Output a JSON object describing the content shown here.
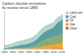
{
  "chart_data": {
    "type": "area",
    "stacked": true,
    "title": "Carbon dioxide emissions\nby source since 1880",
    "x": [
      1880,
      1890,
      1900,
      1910,
      1920,
      1930,
      1940,
      1950,
      1960,
      1970,
      1980,
      1990,
      2000,
      2010,
      2020,
      2023
    ],
    "series": [
      {
        "name": "Other",
        "color": "#d2622a",
        "values": [
          0.01,
          0.01,
          0.02,
          0.03,
          0.04,
          0.04,
          0.05,
          0.06,
          0.08,
          0.1,
          0.12,
          0.14,
          0.16,
          0.18,
          0.2,
          0.22
        ]
      },
      {
        "name": "Gas",
        "color": "#f5a623",
        "values": [
          0.0,
          0.0,
          0.0,
          0.01,
          0.02,
          0.03,
          0.06,
          0.12,
          0.25,
          0.5,
          0.75,
          0.95,
          1.15,
          1.45,
          1.75,
          1.9
        ]
      },
      {
        "name": "Oil",
        "color": "#8faa6e",
        "values": [
          0.0,
          0.0,
          0.02,
          0.06,
          0.12,
          0.2,
          0.35,
          0.6,
          1.1,
          1.8,
          2.3,
          2.5,
          2.7,
          2.9,
          3.0,
          3.2
        ]
      },
      {
        "name": "Coal",
        "color": "#5a9ea0",
        "values": [
          0.25,
          0.4,
          0.7,
          1.0,
          1.2,
          1.3,
          1.4,
          1.6,
          2.0,
          2.5,
          2.9,
          3.2,
          3.4,
          4.6,
          5.1,
          5.2
        ]
      },
      {
        "name": "Land use",
        "color": "#b8d4c8",
        "values": [
          1.0,
          1.1,
          1.2,
          1.4,
          1.5,
          1.6,
          1.7,
          1.8,
          1.9,
          2.0,
          2.0,
          1.9,
          1.8,
          1.9,
          1.8,
          1.8
        ]
      }
    ],
    "xlim": [
      1880,
      2025
    ],
    "xticks": [
      1880,
      1900,
      1920,
      1940,
      1960,
      1980,
      2000,
      2020
    ],
    "ylim": [
      0,
      13
    ],
    "yticks": [],
    "tick_labels": "x",
    "legend": "upper right",
    "grid": false
  }
}
